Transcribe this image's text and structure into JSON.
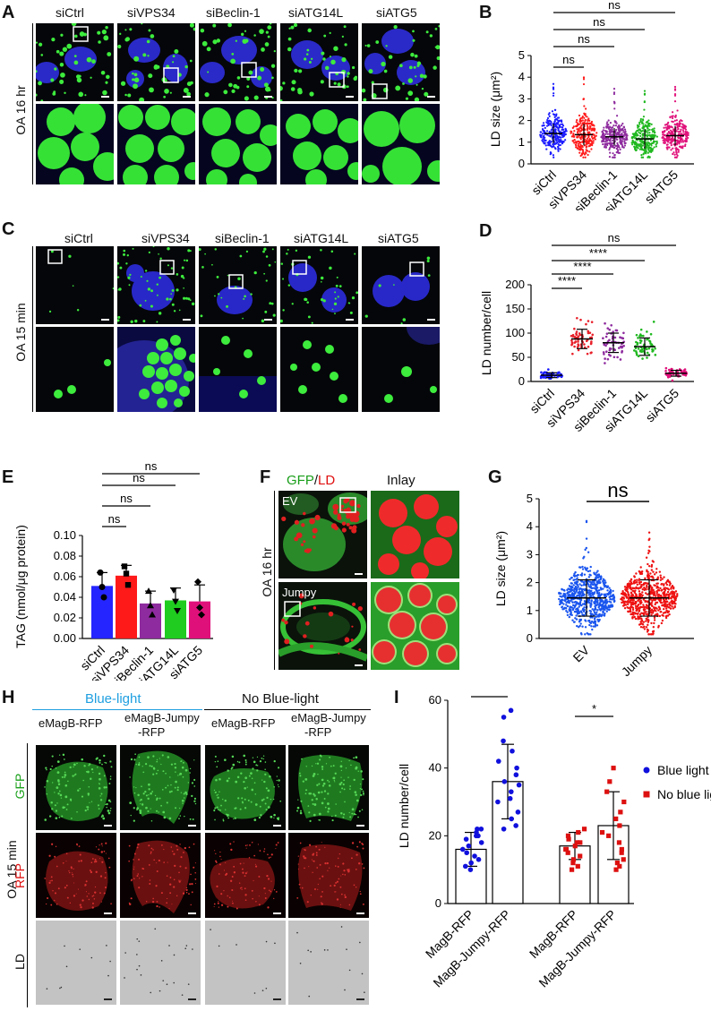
{
  "panels": {
    "A": {
      "letter": "A",
      "columns": [
        "siCtrl",
        "siVPS34",
        "siBeclin-1",
        "siATG14L",
        "siATG5"
      ],
      "row_label": "OA 16 hr"
    },
    "B": {
      "letter": "B",
      "ylabel": "LD size (μm²)",
      "yticks": [
        "0",
        "1",
        "2",
        "3",
        "4",
        "5"
      ],
      "sig": [
        "ns",
        "ns",
        "ns",
        "ns"
      ]
    },
    "C": {
      "letter": "C",
      "columns": [
        "siCtrl",
        "siVPS34",
        "siBeclin-1",
        "siATG14L",
        "siATG5"
      ],
      "row_label": "OA 15 min"
    },
    "D": {
      "letter": "D",
      "ylabel": "LD number/cell",
      "yticks": [
        "0",
        "50",
        "100",
        "150",
        "200"
      ],
      "sig": [
        "****",
        "****",
        "****",
        "ns"
      ]
    },
    "E": {
      "letter": "E",
      "ylabel": "TAG (nmol/μg protein)",
      "yticks": [
        "0.00",
        "0.02",
        "0.04",
        "0.06",
        "0.08",
        "0.10"
      ],
      "sig": [
        "ns",
        "ns",
        "ns",
        "ns"
      ]
    },
    "F": {
      "letter": "F",
      "title_gfp": "GFP",
      "title_slash": "/",
      "title_ld": "LD",
      "inlay": "Inlay",
      "row_label": "OA 16 hr",
      "tag1": "EV",
      "tag2": "Jumpy"
    },
    "G": {
      "letter": "G",
      "ylabel": "LD size (μm²)",
      "yticks": [
        "0",
        "1",
        "2",
        "3",
        "4",
        "5"
      ],
      "sig": [
        "ns"
      ]
    },
    "H": {
      "letter": "H",
      "group1": "Blue-light",
      "group2": "No Blue-light",
      "columns": [
        "eMagB-RFP",
        "eMagB-Jumpy",
        "-RFP",
        "eMagB-RFP",
        "eMagB-Jumpy",
        "-RFP"
      ],
      "row_main": "OA 15 min",
      "rows": [
        "GFP",
        "RFP",
        "LD"
      ]
    },
    "I": {
      "letter": "I",
      "ylabel": "LD number/cell",
      "yticks": [
        "0",
        "20",
        "40",
        "60"
      ],
      "sig": [
        "****",
        "*"
      ],
      "legend": [
        "Blue light",
        "No blue light"
      ]
    }
  },
  "chart_data": [
    {
      "type": "scatter",
      "panel": "B",
      "categories": [
        "siCtrl",
        "siVPS34",
        "siBeclin-1",
        "siATG14L",
        "siATG5"
      ],
      "means": [
        1.4,
        1.35,
        1.25,
        1.15,
        1.3
      ],
      "sd": [
        0.45,
        0.5,
        0.4,
        0.45,
        0.45
      ],
      "max": [
        3.8,
        4.2,
        3.5,
        3.7,
        3.8
      ],
      "ylim": [
        0,
        5
      ],
      "colors": [
        "#1a1aff",
        "#ff1a1a",
        "#8e2b9e",
        "#1fb81f",
        "#e0107a"
      ]
    },
    {
      "type": "scatter",
      "panel": "D",
      "categories": [
        "siCtrl",
        "siVPS34",
        "siBeclin-1",
        "siATG14L",
        "siATG5"
      ],
      "means": [
        13,
        88,
        80,
        72,
        17
      ],
      "sd": [
        5,
        20,
        20,
        18,
        6
      ],
      "ylim": [
        0,
        200
      ],
      "colors": [
        "#1a1aff",
        "#e8202a",
        "#8e2b9e",
        "#1fb81f",
        "#e0107a"
      ]
    },
    {
      "type": "bar",
      "panel": "E",
      "categories": [
        "siCtrl",
        "siVPS34",
        "siBeclin-1",
        "siATG14L",
        "siATG5"
      ],
      "values": [
        0.051,
        0.061,
        0.034,
        0.037,
        0.036
      ],
      "sem": [
        0.013,
        0.01,
        0.012,
        0.012,
        0.016
      ],
      "points": [
        [
          0.064,
          0.05,
          0.04
        ],
        [
          0.07,
          0.063,
          0.052
        ],
        [
          0.046,
          0.032,
          0.023
        ],
        [
          0.047,
          0.036,
          0.027
        ],
        [
          0.055,
          0.03,
          0.023
        ]
      ],
      "markers": [
        "circle",
        "square",
        "triangle",
        "triangle-down",
        "diamond"
      ],
      "ylim": [
        0,
        0.1
      ],
      "colors": [
        "#2525ff",
        "#ff1a1a",
        "#8e2b9e",
        "#1fcc1f",
        "#e0107a"
      ]
    },
    {
      "type": "scatter",
      "panel": "G",
      "categories": [
        "EV",
        "Jumpy"
      ],
      "means": [
        1.45,
        1.45
      ],
      "sd": [
        0.65,
        0.65
      ],
      "max": [
        4.3,
        3.8
      ],
      "ylim": [
        0,
        5
      ],
      "colors": [
        "#1a55ee",
        "#ee1111"
      ]
    },
    {
      "type": "bar",
      "panel": "I",
      "categories": [
        "MagB-RFP",
        "MagB-Jumpy-RFP",
        "MagB-RFP",
        "MagB-Jumpy-RFP"
      ],
      "values": [
        16,
        36,
        17,
        23
      ],
      "sd": [
        5,
        11,
        4,
        10
      ],
      "ylim": [
        0,
        60
      ],
      "series_colors": [
        "#1010dd",
        "#1010dd",
        "#dd1010",
        "#dd1010"
      ],
      "points": [
        [
          22,
          21,
          20,
          19,
          18,
          17,
          16,
          15,
          14,
          13,
          12,
          11,
          10,
          22,
          20
        ],
        [
          57,
          55,
          48,
          45,
          42,
          40,
          38,
          36,
          35,
          33,
          31,
          30,
          27,
          25,
          23,
          22
        ],
        [
          22,
          20,
          19,
          18,
          18,
          17,
          16,
          16,
          15,
          14,
          13,
          12,
          11,
          10,
          21
        ],
        [
          40,
          36,
          33,
          30,
          27,
          25,
          23,
          21,
          20,
          18,
          16,
          15,
          13,
          12,
          11,
          10
        ]
      ]
    }
  ]
}
